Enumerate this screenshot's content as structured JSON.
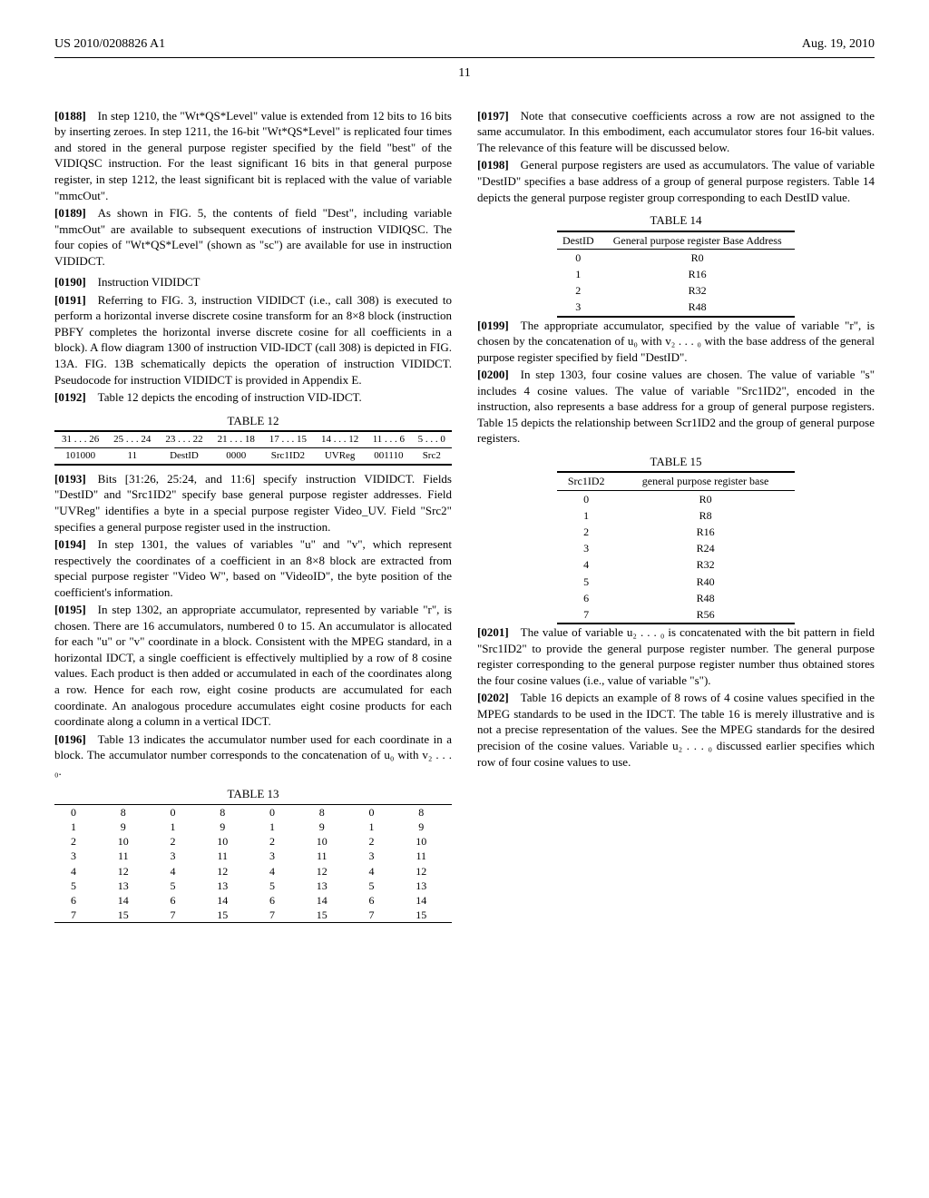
{
  "header": {
    "pub_no": "US 2010/0208826 A1",
    "date": "Aug. 19, 2010"
  },
  "page_number": "11",
  "left": {
    "p0188": "[0188] In step 1210, the \"Wt*QS*Level\" value is extended from 12 bits to 16 bits by inserting zeroes. In step 1211, the 16-bit \"Wt*QS*Level\" is replicated four times and stored in the general purpose register specified by the field \"best\" of the VIDIQSC instruction. For the least significant 16 bits in that general purpose register, in step 1212, the least significant bit is replaced with the value of variable \"mmcOut\".",
    "p0189": "[0189] As shown in FIG. 5, the contents of field \"Dest\", including variable \"mmcOut\" are available to subsequent executions of instruction VIDIQSC. The four copies of \"Wt*QS*Level\" (shown as \"sc\") are available for use in instruction VIDIDCT.",
    "p0190": "[0190] Instruction VIDIDCT",
    "p0191": "[0191] Referring to FIG. 3, instruction VIDIDCT (i.e., call 308) is executed to perform a horizontal inverse discrete cosine transform for an 8×8 block (instruction PBFY completes the horizontal inverse discrete cosine for all coefficients in a block). A flow diagram 1300 of instruction VID-IDCT (call 308) is depicted in FIG. 13A. FIG. 13B schematically depicts the operation of instruction VIDIDCT. Pseudocode for instruction VIDIDCT is provided in Appendix E.",
    "p0192": "[0192] Table 12 depicts the encoding of instruction VID-IDCT.",
    "table12_title": "TABLE 12",
    "table12": {
      "head": [
        "31 . . . 26",
        "25 . . . 24",
        "23 . . . 22",
        "21 . . . 18",
        "17 . . . 15",
        "14 . . . 12",
        "11 . . . 6",
        "5 . . . 0"
      ],
      "row": [
        "101000",
        "11",
        "DestID",
        "0000",
        "Src1ID2",
        "UVReg",
        "001110",
        "Src2"
      ]
    },
    "p0193": "[0193] Bits [31:26, 25:24, and 11:6] specify instruction VIDIDCT. Fields \"DestID\" and \"Src1ID2\" specify base general purpose register addresses. Field \"UVReg\" identifies a byte in a special purpose register Video_UV. Field \"Src2\" specifies a general purpose register used in the instruction.",
    "p0194": "[0194] In step 1301, the values of variables \"u\" and \"v\", which represent respectively the coordinates of a coefficient in an 8×8 block are extracted from special purpose register \"Video W\", based on \"VideoID\", the byte position of the coefficient's information.",
    "p0195": "[0195] In step 1302, an appropriate accumulator, represented by variable \"r\", is chosen. There are 16 accumulators, numbered 0 to 15. An accumulator is allocated for each \"u\" or \"v\" coordinate in a block. Consistent with the MPEG standard, in a horizontal IDCT, a single coefficient is effectively multiplied by a row of 8 cosine values. Each product is then added or accumulated in each of the coordinates along a row. Hence for each row, eight cosine products are accumulated for each coordinate. An analogous procedure accumulates eight cosine products for each coordinate along a column in a vertical IDCT.",
    "p0196": "[0196] Table 13 indicates the accumulator number used for each coordinate in a block. The accumulator number corresponds to the concatenation of u₀ with v₂ . . . ₀.",
    "table13_title": "TABLE 13",
    "table13_rows": [
      [
        "0",
        "8",
        "0",
        "8",
        "0",
        "8",
        "0",
        "8"
      ],
      [
        "1",
        "9",
        "1",
        "9",
        "1",
        "9",
        "1",
        "9"
      ],
      [
        "2",
        "10",
        "2",
        "10",
        "2",
        "10",
        "2",
        "10"
      ],
      [
        "3",
        "11",
        "3",
        "11",
        "3",
        "11",
        "3",
        "11"
      ],
      [
        "4",
        "12",
        "4",
        "12",
        "4",
        "12",
        "4",
        "12"
      ],
      [
        "5",
        "13",
        "5",
        "13",
        "5",
        "13",
        "5",
        "13"
      ],
      [
        "6",
        "14",
        "6",
        "14",
        "6",
        "14",
        "6",
        "14"
      ],
      [
        "7",
        "15",
        "7",
        "15",
        "7",
        "15",
        "7",
        "15"
      ]
    ]
  },
  "right": {
    "p0197": "[0197] Note that consecutive coefficients across a row are not assigned to the same accumulator. In this embodiment, each accumulator stores four 16-bit values. The relevance of this feature will be discussed below.",
    "p0198": "[0198] General purpose registers are used as accumulators. The value of variable \"DestID\" specifies a base address of a group of general purpose registers. Table 14 depicts the general purpose register group corresponding to each DestID value.",
    "table14_title": "TABLE 14",
    "table14": {
      "head": [
        "DestID",
        "General purpose register Base Address"
      ],
      "rows": [
        [
          "0",
          "R0"
        ],
        [
          "1",
          "R16"
        ],
        [
          "2",
          "R32"
        ],
        [
          "3",
          "R48"
        ]
      ]
    },
    "p0199": "[0199] The appropriate accumulator, specified by the value of variable \"r\", is chosen by the concatenation of u₀ with v₂ . . . ₀ with the base address of the general purpose register specified by field \"DestID\".",
    "p0200": "[0200] In step 1303, four cosine values are chosen. The value of variable \"s\" includes 4 cosine values. The value of variable \"Src1ID2\", encoded in the instruction, also represents a base address for a group of general purpose registers. Table 15 depicts the relationship between Scr1ID2 and the group of general purpose registers.",
    "table15_title": "TABLE 15",
    "table15": {
      "head": [
        "Src1ID2",
        "general purpose register base"
      ],
      "rows": [
        [
          "0",
          "R0"
        ],
        [
          "1",
          "R8"
        ],
        [
          "2",
          "R16"
        ],
        [
          "3",
          "R24"
        ],
        [
          "4",
          "R32"
        ],
        [
          "5",
          "R40"
        ],
        [
          "6",
          "R48"
        ],
        [
          "7",
          "R56"
        ]
      ]
    },
    "p0201": "[0201] The value of variable u₂ . . . ₀ is concatenated with the bit pattern in field \"Src1ID2\" to provide the general purpose register number. The general purpose register corresponding to the general purpose register number thus obtained stores the four cosine values (i.e., value of variable \"s\").",
    "p0202": "[0202] Table 16 depicts an example of 8 rows of 4 cosine values specified in the MPEG standards to be used in the IDCT. The table 16 is merely illustrative and is not a precise representation of the values. See the MPEG standards for the desired precision of the cosine values. Variable u₂ . . . ₀ discussed earlier specifies which row of four cosine values to use."
  }
}
